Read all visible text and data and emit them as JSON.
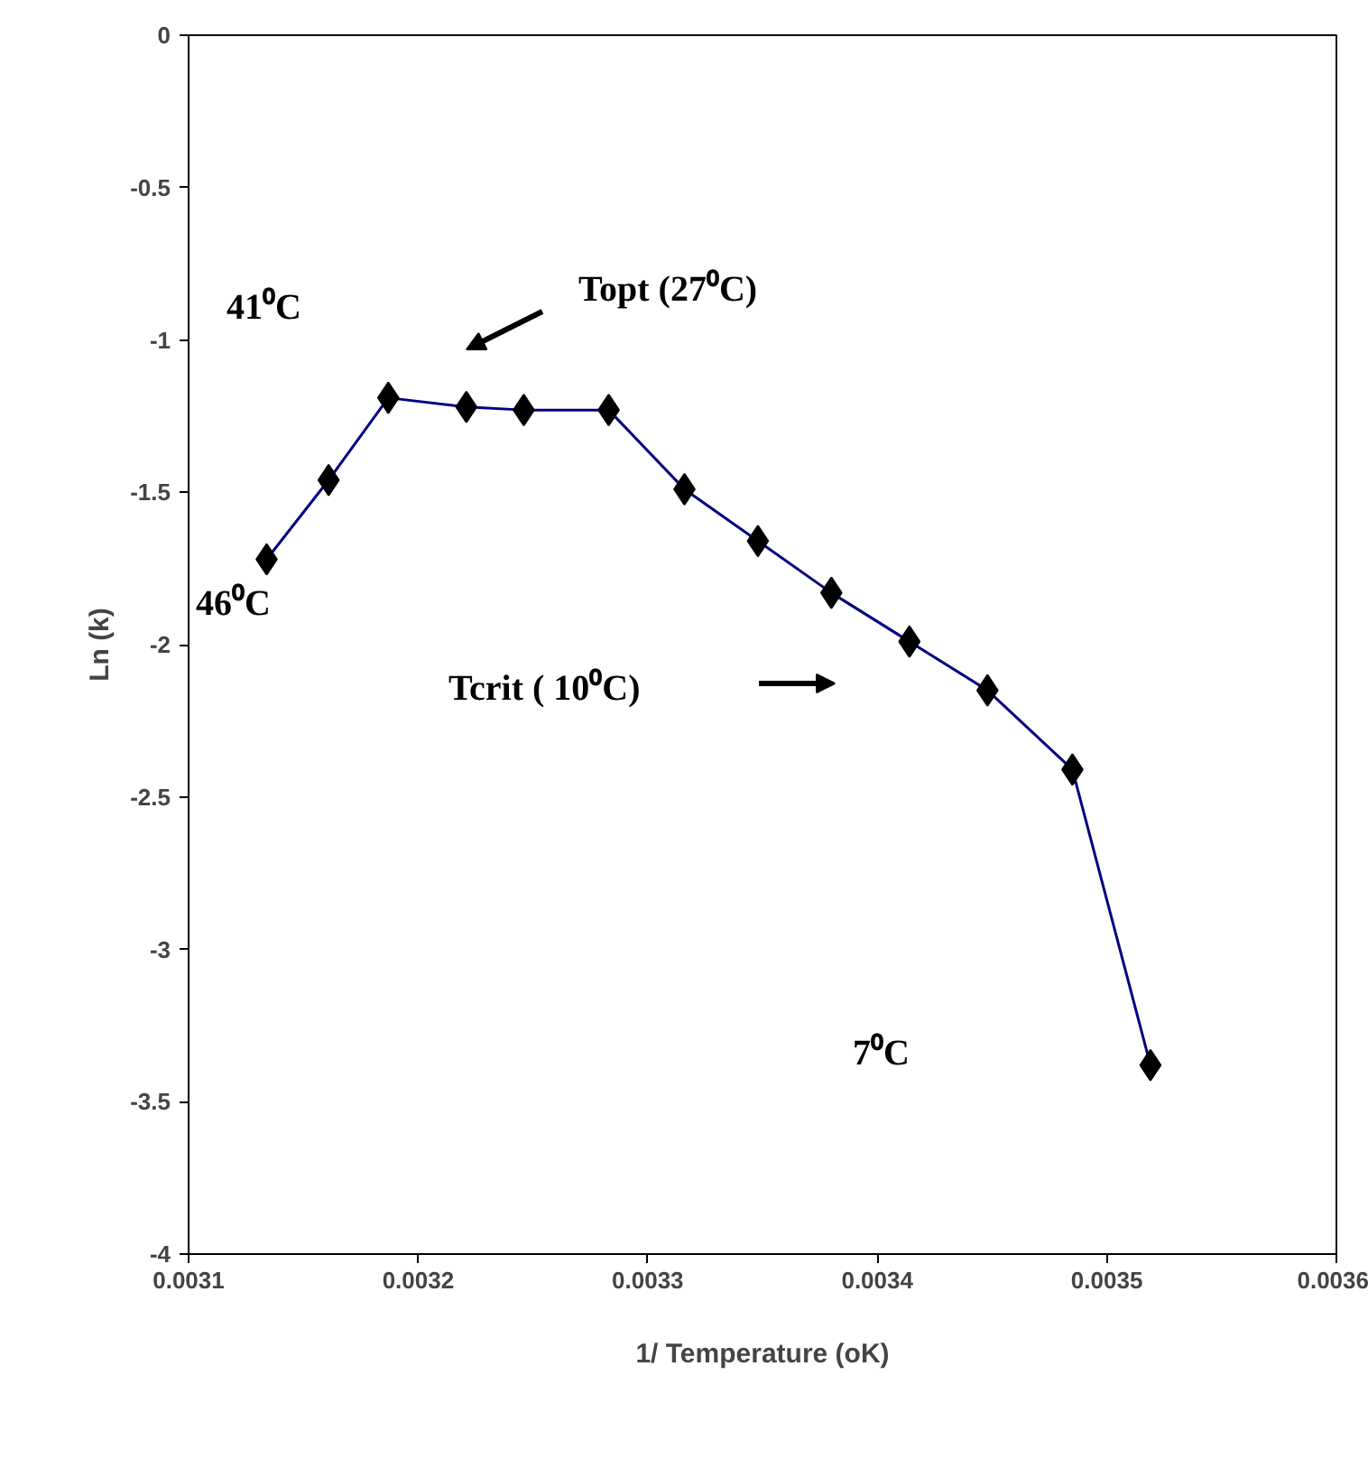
{
  "chart_data": {
    "type": "line",
    "xlabel": "1/ Temperature (oK)",
    "ylabel": "Ln (k)",
    "x": [
      0.003134,
      0.003161,
      0.003187,
      0.003221,
      0.003246,
      0.003283,
      0.003316,
      0.003348,
      0.00338,
      0.003414,
      0.003448,
      0.003485,
      0.003519
    ],
    "series": [
      {
        "color": "#000080",
        "values": [
          -1.72,
          -1.46,
          -1.19,
          -1.22,
          -1.23,
          -1.23,
          -1.49,
          -1.66,
          -1.83,
          -1.99,
          -2.15,
          -2.41,
          -3.38
        ]
      }
    ],
    "marker": "diamond",
    "grid": false,
    "xlim": [
      0.0031,
      0.0036
    ],
    "xticks": [
      0.0031,
      0.0032,
      0.0033,
      0.0034,
      0.0035,
      0.0036
    ],
    "ylim": [
      -4,
      0
    ],
    "yticks": [
      0,
      -0.5,
      -1,
      -1.5,
      -2,
      -2.5,
      -3,
      -3.5,
      -4
    ],
    "annotations": [
      "41⁰C",
      "Topt (27⁰C)",
      "46⁰C",
      "Tcrit ( 10⁰C)",
      "7⁰C"
    ]
  }
}
